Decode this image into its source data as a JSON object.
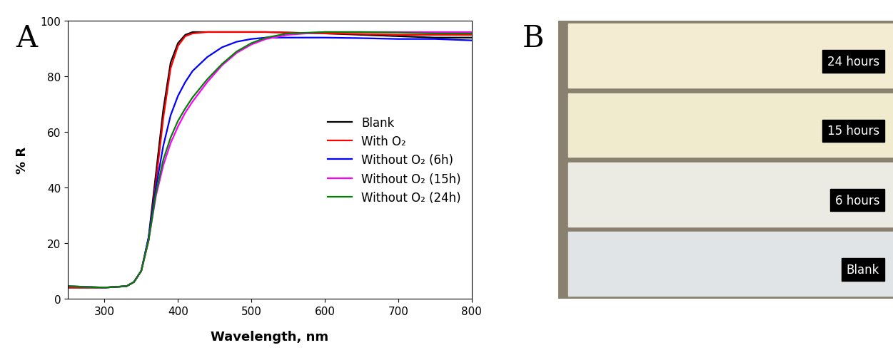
{
  "chart_data": {
    "type": "line",
    "panel_label": "A",
    "x_label": "Wavelength, nm",
    "y_label": "% R",
    "x": [
      250,
      300,
      330,
      340,
      350,
      360,
      370,
      380,
      390,
      400,
      410,
      420,
      440,
      460,
      480,
      500,
      520,
      550,
      600,
      650,
      700,
      750,
      800
    ],
    "series": [
      {
        "name": "Blank",
        "color": "#000000",
        "values": [
          4,
          4,
          4.5,
          6,
          10,
          22,
          45,
          68,
          85,
          92,
          95,
          96,
          96,
          96,
          96,
          96,
          96,
          95.8,
          95.5,
          95,
          94.5,
          94,
          94
        ]
      },
      {
        "name": "With O₂",
        "color": "#ff0000",
        "values": [
          4,
          4,
          4.5,
          6,
          10,
          21,
          42,
          65,
          83,
          91,
          94.5,
          95.5,
          96,
          96,
          96,
          96,
          96,
          95.8,
          95.5,
          95.3,
          95,
          95,
          95
        ]
      },
      {
        "name": "Without O₂ (6h)",
        "color": "#0000ff",
        "values": [
          4.5,
          4,
          4.5,
          6,
          10,
          22,
          40,
          55,
          66,
          73,
          78,
          82,
          87,
          90.5,
          92.5,
          93.5,
          94,
          94,
          94,
          93.8,
          93.5,
          93.5,
          93
        ]
      },
      {
        "name": "Without O₂ (15h)",
        "color": "#ff00ff",
        "values": [
          4.5,
          4,
          4.5,
          6,
          10,
          21,
          37,
          48,
          56,
          62,
          67,
          71,
          78,
          84,
          88.5,
          91.5,
          93.5,
          95,
          96,
          96,
          96,
          96,
          96
        ]
      },
      {
        "name": "Without O₂ (24h)",
        "color": "#008000",
        "values": [
          4.5,
          4,
          4.5,
          6,
          10,
          21,
          38,
          50,
          58,
          64,
          68.5,
          72.5,
          79,
          84.5,
          89,
          92,
          94,
          95.5,
          96,
          96,
          95.8,
          95.5,
          95.5
        ]
      }
    ],
    "xlim": [
      250,
      800
    ],
    "xticks": [
      300,
      400,
      500,
      600,
      700,
      800
    ],
    "ylim": [
      0,
      100
    ],
    "yticks": [
      0,
      20,
      40,
      60,
      80,
      100
    ],
    "legend": "center right",
    "grid": false
  },
  "photo": {
    "panel_label": "B",
    "labels": [
      "24 hours",
      "15 hours",
      "6 hours",
      "Blank"
    ]
  }
}
